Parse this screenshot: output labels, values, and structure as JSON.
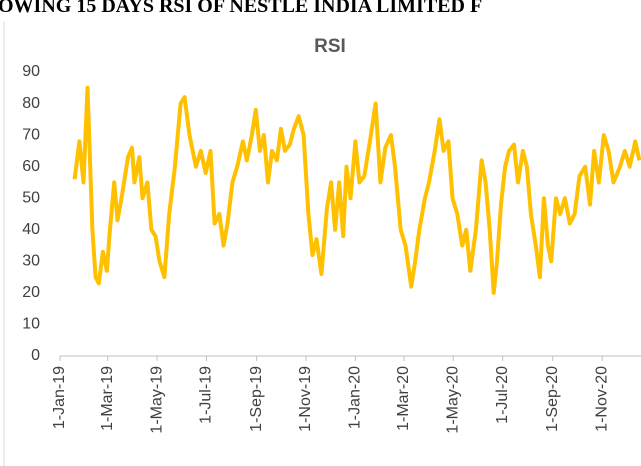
{
  "page_title": "OWING 15 DAYS RSI OF NESTLE INDIA LIMITED F",
  "chart_data": {
    "type": "line",
    "title": "RSI",
    "xlim": [
      "2019-01-01",
      "2020-12-19"
    ],
    "xticks": [
      {
        "value": "2019-01-01",
        "label": "1-Jan-19"
      },
      {
        "value": "2019-03-01",
        "label": "1-Mar-19"
      },
      {
        "value": "2019-05-01",
        "label": "1-May-19"
      },
      {
        "value": "2019-07-01",
        "label": "1-Jul-19"
      },
      {
        "value": "2019-09-01",
        "label": "1-Sep-19"
      },
      {
        "value": "2019-11-01",
        "label": "1-Nov-19"
      },
      {
        "value": "2020-01-01",
        "label": "1-Jan-20"
      },
      {
        "value": "2020-03-01",
        "label": "1-Mar-20"
      },
      {
        "value": "2020-05-01",
        "label": "1-May-20"
      },
      {
        "value": "2020-07-01",
        "label": "1-Jul-20"
      },
      {
        "value": "2020-09-01",
        "label": "1-Sep-20"
      },
      {
        "value": "2020-11-01",
        "label": "1-Nov-20"
      }
    ],
    "ylim": [
      0,
      90
    ],
    "yticks": [
      0,
      10,
      20,
      30,
      40,
      50,
      60,
      70,
      80,
      90
    ],
    "x": [
      "2019-01-19",
      "2019-01-25",
      "2019-01-30",
      "2019-02-04",
      "2019-02-10",
      "2019-02-14",
      "2019-02-18",
      "2019-02-23",
      "2019-02-28",
      "2019-03-03",
      "2019-03-09",
      "2019-03-13",
      "2019-03-18",
      "2019-03-26",
      "2019-03-31",
      "2019-04-03",
      "2019-04-09",
      "2019-04-13",
      "2019-04-19",
      "2019-04-24",
      "2019-04-29",
      "2019-05-04",
      "2019-05-10",
      "2019-05-16",
      "2019-05-23",
      "2019-05-30",
      "2019-06-04",
      "2019-06-10",
      "2019-06-18",
      "2019-06-24",
      "2019-06-30",
      "2019-07-06",
      "2019-07-11",
      "2019-07-17",
      "2019-07-22",
      "2019-07-27",
      "2019-08-02",
      "2019-08-08",
      "2019-08-15",
      "2019-08-20",
      "2019-08-26",
      "2019-08-31",
      "2019-09-05",
      "2019-09-10",
      "2019-09-15",
      "2019-09-20",
      "2019-09-26",
      "2019-10-01",
      "2019-10-06",
      "2019-10-12",
      "2019-10-17",
      "2019-10-23",
      "2019-10-29",
      "2019-11-04",
      "2019-11-09",
      "2019-11-14",
      "2019-11-20",
      "2019-11-27",
      "2019-12-02",
      "2019-12-07",
      "2019-12-12",
      "2019-12-17",
      "2019-12-21",
      "2019-12-26",
      "2020-01-01",
      "2020-01-06",
      "2020-01-12",
      "2020-01-19",
      "2020-01-26",
      "2020-02-01",
      "2020-02-07",
      "2020-02-14",
      "2020-02-19",
      "2020-02-26",
      "2020-03-03",
      "2020-03-10",
      "2020-03-15",
      "2020-03-20",
      "2020-03-27",
      "2020-04-01",
      "2020-04-08",
      "2020-04-14",
      "2020-04-19",
      "2020-04-25",
      "2020-04-30",
      "2020-05-06",
      "2020-05-12",
      "2020-05-17",
      "2020-05-22",
      "2020-05-29",
      "2020-06-05",
      "2020-06-10",
      "2020-06-15",
      "2020-06-20",
      "2020-06-24",
      "2020-06-29",
      "2020-07-04",
      "2020-07-09",
      "2020-07-15",
      "2020-07-20",
      "2020-07-26",
      "2020-07-31",
      "2020-08-05",
      "2020-08-11",
      "2020-08-16",
      "2020-08-21",
      "2020-08-26",
      "2020-08-30",
      "2020-09-05",
      "2020-09-10",
      "2020-09-16",
      "2020-09-22",
      "2020-09-28",
      "2020-10-04",
      "2020-10-11",
      "2020-10-17",
      "2020-10-22",
      "2020-10-28",
      "2020-11-03",
      "2020-11-09",
      "2020-11-15",
      "2020-11-23",
      "2020-11-29",
      "2020-12-05",
      "2020-12-12",
      "2020-12-17"
    ],
    "series": [
      {
        "name": "RSI",
        "color": "#ffc000",
        "values": [
          56,
          68,
          55,
          85,
          40,
          25,
          23,
          33,
          27,
          38,
          55,
          43,
          50,
          63,
          66,
          55,
          63,
          50,
          55,
          40,
          38,
          30,
          25,
          45,
          60,
          80,
          82,
          70,
          60,
          65,
          58,
          65,
          42,
          45,
          35,
          42,
          55,
          60,
          68,
          62,
          70,
          78,
          65,
          70,
          55,
          65,
          62,
          72,
          65,
          67,
          72,
          76,
          70,
          45,
          32,
          37,
          26,
          47,
          55,
          40,
          55,
          38,
          60,
          50,
          68,
          55,
          57,
          68,
          80,
          55,
          66,
          70,
          60,
          40,
          35,
          22,
          30,
          40,
          50,
          55,
          65,
          75,
          65,
          68,
          50,
          45,
          35,
          40,
          27,
          40,
          62,
          55,
          40,
          20,
          30,
          48,
          60,
          65,
          67,
          55,
          65,
          60,
          45,
          35,
          25,
          50,
          35,
          30,
          50,
          45,
          50,
          42,
          45,
          57,
          60,
          48,
          65,
          55,
          70,
          65,
          55,
          60,
          65,
          60,
          68,
          62
        ]
      }
    ]
  }
}
